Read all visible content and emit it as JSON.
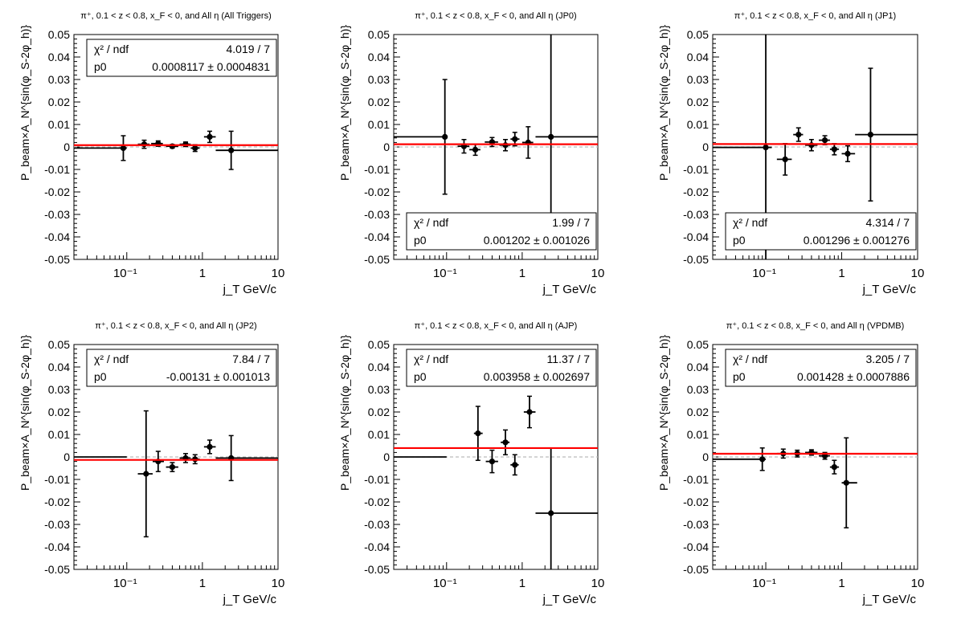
{
  "colors": {
    "fit_line": "#ff0000",
    "zero_line": "#bbbbbb",
    "points": "#000000"
  },
  "chart_data": [
    {
      "type": "scatter",
      "title": "π⁺, 0.1 < z < 0.8, x_F < 0, and All η (All Triggers)",
      "xlabel": "j_T GeV/c",
      "ylabel": "P_beam×A_N^{sin(φ_S-2φ_h)}",
      "x_scale": "log",
      "xlim": [
        0.02,
        10
      ],
      "ylim": [
        -0.05,
        0.05
      ],
      "x_tick_labels": [
        "10⁻¹",
        "1",
        "10"
      ],
      "y_tick_labels": [
        "0.05",
        "0.04",
        "0.03",
        "0.02",
        "0.01",
        "0",
        "-0.01",
        "-0.02",
        "-0.03",
        "-0.04",
        "-0.05"
      ],
      "stats_box": {
        "placement": "top",
        "rows": [
          {
            "label": "χ² / ndf",
            "value": "4.019 / 7"
          },
          {
            "label": "p0",
            "value": "0.0008117 ± 0.0004831"
          }
        ]
      },
      "fit_value": 0.0008117,
      "points": [
        {
          "x": 0.09,
          "y": -0.0005,
          "xlo": 0.02,
          "xhi": 0.1,
          "ey": 0.0055
        },
        {
          "x": 0.17,
          "y": 0.0012,
          "xlo": 0.14,
          "xhi": 0.2,
          "ey": 0.0018
        },
        {
          "x": 0.26,
          "y": 0.0015,
          "xlo": 0.21,
          "xhi": 0.3,
          "ey": 0.0012
        },
        {
          "x": 0.4,
          "y": 0.0003,
          "xlo": 0.33,
          "xhi": 0.48,
          "ey": 0.0008
        },
        {
          "x": 0.6,
          "y": 0.0012,
          "xlo": 0.5,
          "xhi": 0.7,
          "ey": 0.001
        },
        {
          "x": 0.8,
          "y": -0.0005,
          "xlo": 0.7,
          "xhi": 0.92,
          "ey": 0.0015
        },
        {
          "x": 1.25,
          "y": 0.0045,
          "xlo": 1.05,
          "xhi": 1.5,
          "ey": 0.0025
        },
        {
          "x": 2.4,
          "y": -0.0015,
          "xlo": 1.5,
          "xhi": 10,
          "ey": 0.0085
        }
      ]
    },
    {
      "type": "scatter",
      "title": "π⁺, 0.1 < z < 0.8, x_F < 0, and All η (JP0)",
      "xlabel": "j_T GeV/c",
      "ylabel": "P_beam×A_N^{sin(φ_S-2φ_h)}",
      "x_scale": "log",
      "xlim": [
        0.02,
        10
      ],
      "ylim": [
        -0.05,
        0.05
      ],
      "x_tick_labels": [
        "10⁻¹",
        "1",
        "10"
      ],
      "y_tick_labels": [
        "0.05",
        "0.04",
        "0.03",
        "0.02",
        "0.01",
        "0",
        "-0.01",
        "-0.02",
        "-0.03",
        "-0.04",
        "-0.05"
      ],
      "stats_box": {
        "placement": "bottom",
        "rows": [
          {
            "label": "χ² / ndf",
            "value": "1.99 / 7"
          },
          {
            "label": "p0",
            "value": "0.001202 ± 0.001026"
          }
        ]
      },
      "fit_value": 0.001202,
      "points": [
        {
          "x": 0.095,
          "y": 0.0045,
          "xlo": 0.02,
          "xhi": 0.1,
          "ey": 0.0255
        },
        {
          "x": 0.17,
          "y": 0.0003,
          "xlo": 0.14,
          "xhi": 0.2,
          "ey": 0.003
        },
        {
          "x": 0.24,
          "y": -0.0012,
          "xlo": 0.2,
          "xhi": 0.28,
          "ey": 0.0025
        },
        {
          "x": 0.4,
          "y": 0.0022,
          "xlo": 0.32,
          "xhi": 0.48,
          "ey": 0.002
        },
        {
          "x": 0.6,
          "y": 0.0008,
          "xlo": 0.5,
          "xhi": 0.7,
          "ey": 0.0025
        },
        {
          "x": 0.8,
          "y": 0.0035,
          "xlo": 0.7,
          "xhi": 0.92,
          "ey": 0.003
        },
        {
          "x": 1.2,
          "y": 0.002,
          "xlo": 1.0,
          "xhi": 1.4,
          "ey": 0.007
        },
        {
          "x": 2.4,
          "y": 0.0045,
          "xlo": 1.5,
          "xhi": 10,
          "ey": 0.05
        }
      ]
    },
    {
      "type": "scatter",
      "title": "π⁺, 0.1 < z < 0.8, x_F < 0, and All η (JP1)",
      "xlabel": "j_T GeV/c",
      "ylabel": "P_beam×A_N^{sin(φ_S-2φ_h)}",
      "x_scale": "log",
      "xlim": [
        0.02,
        10
      ],
      "ylim": [
        -0.05,
        0.05
      ],
      "x_tick_labels": [
        "10⁻¹",
        "1",
        "10"
      ],
      "y_tick_labels": [
        "0.05",
        "0.04",
        "0.03",
        "0.02",
        "0.01",
        "0",
        "-0.01",
        "-0.02",
        "-0.03",
        "-0.04",
        "-0.05"
      ],
      "stats_box": {
        "placement": "bottom",
        "rows": [
          {
            "label": "χ² / ndf",
            "value": "4.314 / 7"
          },
          {
            "label": "p0",
            "value": "0.001296 ± 0.001276"
          }
        ]
      },
      "fit_value": 0.001296,
      "points": [
        {
          "x": 0.1,
          "y": -0.0002,
          "xlo": 0.02,
          "xhi": 0.12,
          "ey": 0.052
        },
        {
          "x": 0.18,
          "y": -0.0055,
          "xlo": 0.14,
          "xhi": 0.22,
          "ey": 0.007
        },
        {
          "x": 0.27,
          "y": 0.0055,
          "xlo": 0.23,
          "xhi": 0.31,
          "ey": 0.003
        },
        {
          "x": 0.4,
          "y": 0.0008,
          "xlo": 0.33,
          "xhi": 0.48,
          "ey": 0.0025
        },
        {
          "x": 0.6,
          "y": 0.003,
          "xlo": 0.5,
          "xhi": 0.7,
          "ey": 0.002
        },
        {
          "x": 0.8,
          "y": -0.001,
          "xlo": 0.7,
          "xhi": 0.92,
          "ey": 0.0025
        },
        {
          "x": 1.2,
          "y": -0.003,
          "xlo": 1.0,
          "xhi": 1.5,
          "ey": 0.0035
        },
        {
          "x": 2.4,
          "y": 0.0055,
          "xlo": 1.5,
          "xhi": 10,
          "ey": 0.0295
        }
      ]
    },
    {
      "type": "scatter",
      "title": "π⁺, 0.1 < z < 0.8, x_F < 0, and All η (JP2)",
      "xlabel": "j_T GeV/c",
      "ylabel": "P_beam×A_N^{sin(φ_S-2φ_h)}",
      "x_scale": "log",
      "xlim": [
        0.02,
        10
      ],
      "ylim": [
        -0.05,
        0.05
      ],
      "x_tick_labels": [
        "10⁻¹",
        "1",
        "10"
      ],
      "y_tick_labels": [
        "0.05",
        "0.04",
        "0.03",
        "0.02",
        "0.01",
        "0",
        "-0.01",
        "-0.02",
        "-0.03",
        "-0.04",
        "-0.05"
      ],
      "stats_box": {
        "placement": "top",
        "rows": [
          {
            "label": "χ² / ndf",
            "value": "7.84 / 7"
          },
          {
            "label": "p0",
            "value": "-0.00131 ± 0.001013"
          }
        ]
      },
      "fit_value": -0.00131,
      "points": [
        {
          "x": 0.05,
          "y": 0.0,
          "xlo": 0.02,
          "xhi": 0.1,
          "ey": 0.0
        },
        {
          "x": 0.18,
          "y": -0.0075,
          "xlo": 0.14,
          "xhi": 0.22,
          "ey": 0.028
        },
        {
          "x": 0.26,
          "y": -0.002,
          "xlo": 0.22,
          "xhi": 0.31,
          "ey": 0.0045
        },
        {
          "x": 0.4,
          "y": -0.0045,
          "xlo": 0.33,
          "xhi": 0.48,
          "ey": 0.002
        },
        {
          "x": 0.6,
          "y": -0.0005,
          "xlo": 0.5,
          "xhi": 0.7,
          "ey": 0.002
        },
        {
          "x": 0.8,
          "y": -0.001,
          "xlo": 0.7,
          "xhi": 0.92,
          "ey": 0.002
        },
        {
          "x": 1.25,
          "y": 0.0045,
          "xlo": 1.05,
          "xhi": 1.5,
          "ey": 0.003
        },
        {
          "x": 2.4,
          "y": -0.0005,
          "xlo": 1.5,
          "xhi": 10,
          "ey": 0.01
        }
      ]
    },
    {
      "type": "scatter",
      "title": "π⁺, 0.1 < z < 0.8, x_F < 0, and All η (AJP)",
      "xlabel": "j_T GeV/c",
      "ylabel": "P_beam×A_N^{sin(φ_S-2φ_h)}",
      "x_scale": "log",
      "xlim": [
        0.02,
        10
      ],
      "ylim": [
        -0.05,
        0.05
      ],
      "x_tick_labels": [
        "10⁻¹",
        "1",
        "10"
      ],
      "y_tick_labels": [
        "0.05",
        "0.04",
        "0.03",
        "0.02",
        "0.01",
        "0",
        "-0.01",
        "-0.02",
        "-0.03",
        "-0.04",
        "-0.05"
      ],
      "stats_box": {
        "placement": "top",
        "rows": [
          {
            "label": "χ² / ndf",
            "value": "11.37 / 7"
          },
          {
            "label": "p0",
            "value": "0.003958 ± 0.002697"
          }
        ]
      },
      "fit_value": 0.003958,
      "points": [
        {
          "x": 0.05,
          "y": 0.0,
          "xlo": 0.02,
          "xhi": 0.1,
          "ey": 0.0
        },
        {
          "x": 0.26,
          "y": 0.0105,
          "xlo": 0.23,
          "xhi": 0.3,
          "ey": 0.012
        },
        {
          "x": 0.4,
          "y": -0.002,
          "xlo": 0.33,
          "xhi": 0.48,
          "ey": 0.005
        },
        {
          "x": 0.6,
          "y": 0.0065,
          "xlo": 0.52,
          "xhi": 0.68,
          "ey": 0.0055
        },
        {
          "x": 0.8,
          "y": -0.0035,
          "xlo": 0.7,
          "xhi": 0.9,
          "ey": 0.0045
        },
        {
          "x": 1.25,
          "y": 0.02,
          "xlo": 1.05,
          "xhi": 1.5,
          "ey": 0.007
        },
        {
          "x": 2.4,
          "y": -0.025,
          "xlo": 1.5,
          "xhi": 10,
          "ey": 0.029
        }
      ]
    },
    {
      "type": "scatter",
      "title": "π⁺, 0.1 < z < 0.8, x_F < 0, and All η (VPDMB)",
      "xlabel": "j_T GeV/c",
      "ylabel": "P_beam×A_N^{sin(φ_S-2φ_h)}",
      "x_scale": "log",
      "xlim": [
        0.02,
        10
      ],
      "ylim": [
        -0.05,
        0.05
      ],
      "x_tick_labels": [
        "10⁻¹",
        "1",
        "10"
      ],
      "y_tick_labels": [
        "0.05",
        "0.04",
        "0.03",
        "0.02",
        "0.01",
        "0",
        "-0.01",
        "-0.02",
        "-0.03",
        "-0.04",
        "-0.05"
      ],
      "stats_box": {
        "placement": "top",
        "rows": [
          {
            "label": "χ² / ndf",
            "value": "3.205 / 7"
          },
          {
            "label": "p0",
            "value": "0.001428 ± 0.0007886"
          }
        ]
      },
      "fit_value": 0.001428,
      "points": [
        {
          "x": 0.09,
          "y": -0.001,
          "xlo": 0.02,
          "xhi": 0.1,
          "ey": 0.005
        },
        {
          "x": 0.17,
          "y": 0.0015,
          "xlo": 0.14,
          "xhi": 0.2,
          "ey": 0.002
        },
        {
          "x": 0.26,
          "y": 0.0015,
          "xlo": 0.21,
          "xhi": 0.31,
          "ey": 0.0015
        },
        {
          "x": 0.4,
          "y": 0.002,
          "xlo": 0.33,
          "xhi": 0.48,
          "ey": 0.0012
        },
        {
          "x": 0.6,
          "y": 0.0005,
          "xlo": 0.5,
          "xhi": 0.7,
          "ey": 0.0015
        },
        {
          "x": 0.8,
          "y": -0.0045,
          "xlo": 0.7,
          "xhi": 0.92,
          "ey": 0.003
        },
        {
          "x": 1.15,
          "y": -0.0115,
          "xlo": 1.0,
          "xhi": 1.6,
          "ey": 0.02
        }
      ]
    }
  ]
}
